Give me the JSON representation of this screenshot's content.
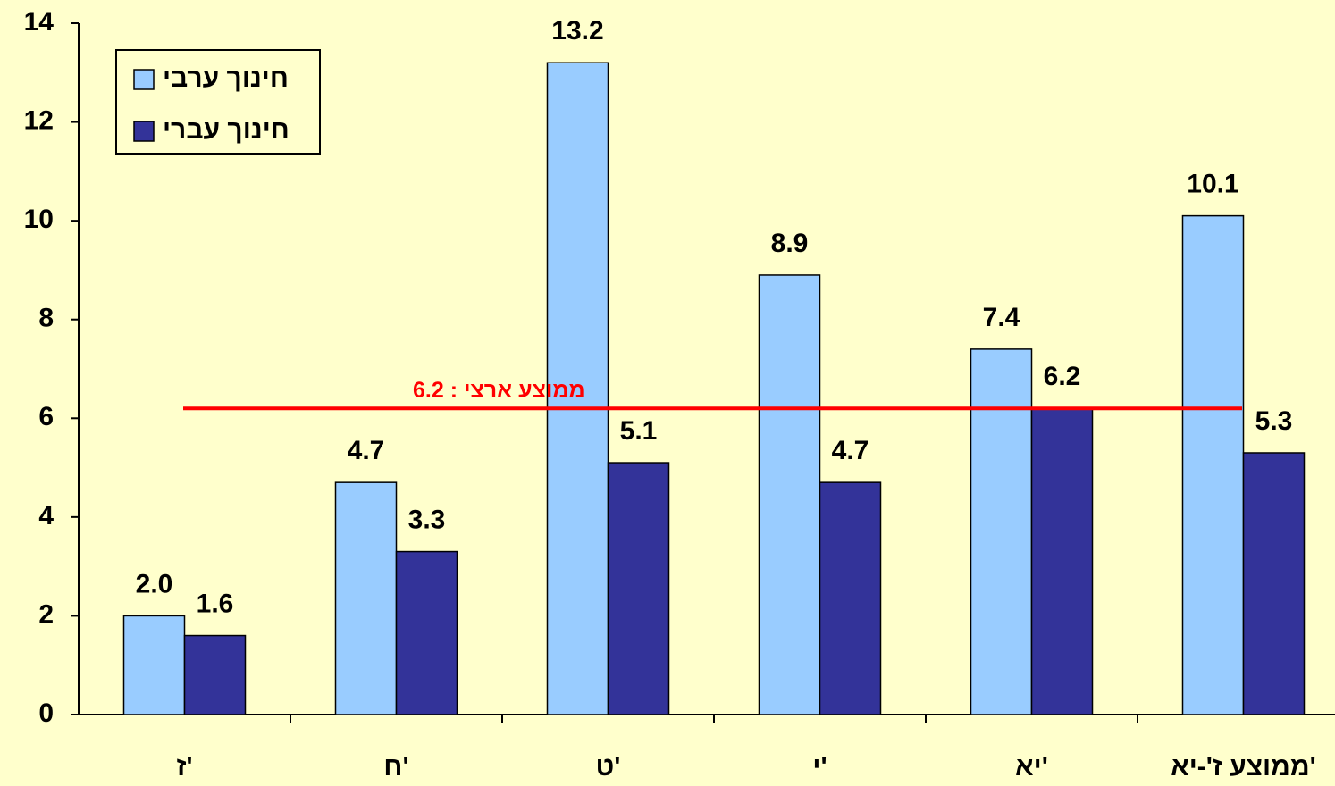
{
  "chart_data": {
    "type": "bar",
    "categories": [
      "ז'",
      "ח'",
      "ט'",
      "י'",
      "יא'",
      "ממוצע ז'-יא'"
    ],
    "series": [
      {
        "name": "חינוך ערבי",
        "color": "#99ccff",
        "values": [
          2.0,
          4.7,
          13.2,
          8.9,
          7.4,
          10.1
        ],
        "value_labels": [
          "2.0",
          "4.7",
          "13.2",
          "8.9",
          "7.4",
          "10.1"
        ]
      },
      {
        "name": "חינוך עברי",
        "color": "#333399",
        "values": [
          1.6,
          3.3,
          5.1,
          4.7,
          6.2,
          5.3
        ]
      }
    ],
    "ylim": [
      0,
      14
    ],
    "yticks": [
      0,
      2,
      4,
      6,
      8,
      10,
      12,
      14
    ],
    "reference_line": {
      "value": 6.2,
      "label": "ממוצע ארצי : 6.2",
      "color": "#ff0000"
    },
    "legend": "top-left",
    "grid": false
  }
}
